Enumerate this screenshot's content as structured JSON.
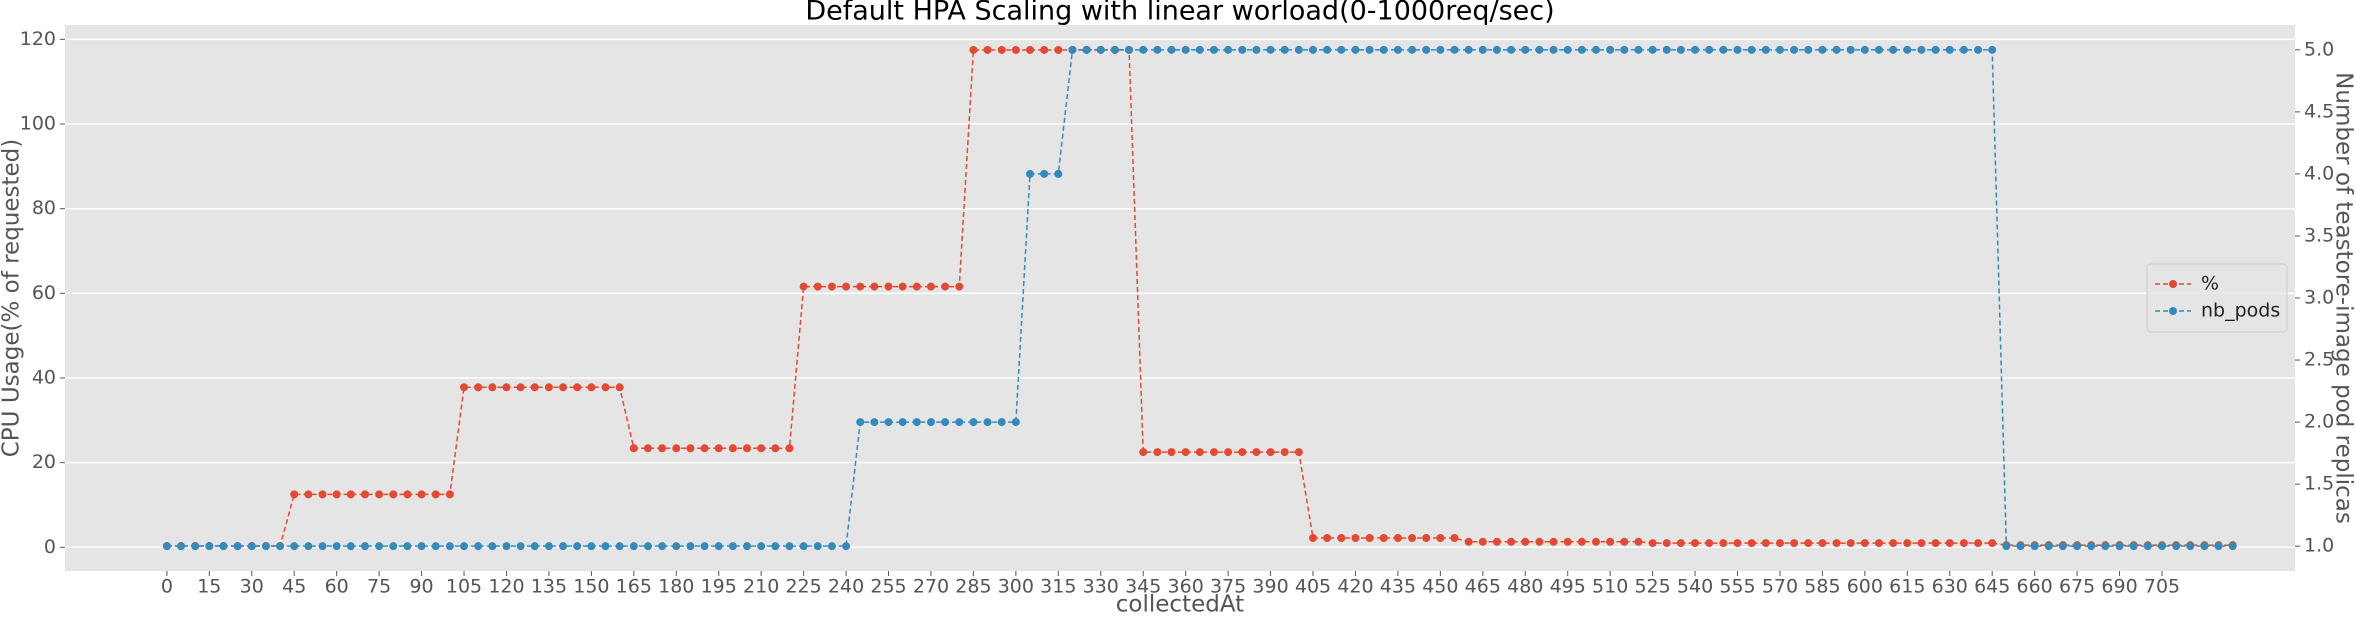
{
  "chart_data": {
    "type": "line",
    "title": "Default HPA Scaling with linear worload(0-1000req/sec)",
    "xlabel": "collectedAt",
    "ylabel": "CPU Usage(% of requested)",
    "y2label": "Number of teastore-image pod replicas",
    "x": [
      0,
      5,
      10,
      15,
      20,
      25,
      30,
      35,
      40,
      45,
      50,
      55,
      60,
      65,
      70,
      75,
      80,
      85,
      90,
      95,
      100,
      105,
      110,
      115,
      120,
      125,
      130,
      135,
      140,
      145,
      150,
      155,
      160,
      165,
      170,
      175,
      180,
      185,
      190,
      195,
      200,
      205,
      210,
      215,
      220,
      225,
      230,
      235,
      240,
      245,
      250,
      255,
      260,
      265,
      270,
      275,
      280,
      285,
      290,
      295,
      300,
      305,
      310,
      315,
      320,
      325,
      330,
      335,
      340,
      345,
      350,
      355,
      360,
      365,
      370,
      375,
      380,
      385,
      390,
      395,
      400,
      405,
      410,
      415,
      420,
      425,
      430,
      435,
      440,
      445,
      450,
      455,
      460,
      465,
      470,
      475,
      480,
      485,
      490,
      495,
      500,
      505,
      510,
      515,
      520,
      525,
      530,
      535,
      540,
      545,
      550,
      555,
      560,
      565,
      570,
      575,
      580,
      585,
      590,
      595,
      600,
      605,
      610,
      615,
      620,
      625,
      630,
      635,
      640,
      645,
      650,
      655,
      660,
      665,
      670,
      675,
      680,
      685,
      690,
      695,
      700,
      705,
      710,
      715,
      720,
      725,
      730
    ],
    "series": [
      {
        "name": "%",
        "color": "#E24A33",
        "axis": "y",
        "values": [
          0.3,
          0.3,
          0.3,
          0.3,
          0.3,
          0.3,
          0.3,
          0.3,
          0.3,
          12.5,
          12.5,
          12.5,
          12.5,
          12.5,
          12.5,
          12.5,
          12.5,
          12.5,
          12.5,
          12.5,
          12.5,
          37.8,
          37.8,
          37.8,
          37.8,
          37.8,
          37.8,
          37.8,
          37.8,
          37.8,
          37.8,
          37.8,
          37.8,
          23.4,
          23.4,
          23.4,
          23.4,
          23.4,
          23.4,
          23.4,
          23.4,
          23.4,
          23.4,
          23.4,
          23.4,
          61.6,
          61.6,
          61.6,
          61.6,
          61.6,
          61.6,
          61.6,
          61.6,
          61.6,
          61.6,
          61.6,
          61.6,
          117.5,
          117.5,
          117.5,
          117.5,
          117.5,
          117.5,
          117.5,
          117.5,
          117.5,
          117.5,
          117.5,
          117.5,
          22.5,
          22.5,
          22.5,
          22.5,
          22.5,
          22.5,
          22.5,
          22.5,
          22.5,
          22.5,
          22.5,
          22.5,
          2.2,
          2.2,
          2.2,
          2.2,
          2.2,
          2.2,
          2.2,
          2.2,
          2.2,
          2.2,
          2.2,
          1.3,
          1.3,
          1.3,
          1.3,
          1.3,
          1.3,
          1.3,
          1.3,
          1.3,
          1.3,
          1.3,
          1.3,
          1.3,
          1,
          1,
          1,
          1,
          1,
          1,
          1,
          1,
          1,
          1,
          1,
          1,
          1,
          1,
          1,
          1,
          1,
          1,
          1,
          1,
          1,
          1,
          1,
          1,
          1,
          0.5,
          0.5,
          0.5,
          0.5,
          0.5,
          0.5,
          0.5,
          0.5,
          0.5,
          0.5,
          0.5,
          0.5,
          0.5,
          0.5,
          0.5,
          0.5,
          0.5
        ]
      },
      {
        "name": "nb_pods",
        "color": "#348ABD",
        "axis": "y2",
        "values": [
          1,
          1,
          1,
          1,
          1,
          1,
          1,
          1,
          1,
          1,
          1,
          1,
          1,
          1,
          1,
          1,
          1,
          1,
          1,
          1,
          1,
          1,
          1,
          1,
          1,
          1,
          1,
          1,
          1,
          1,
          1,
          1,
          1,
          1,
          1,
          1,
          1,
          1,
          1,
          1,
          1,
          1,
          1,
          1,
          1,
          1,
          1,
          1,
          1,
          2,
          2,
          2,
          2,
          2,
          2,
          2,
          2,
          2,
          2,
          2,
          2,
          4,
          4,
          4,
          5,
          5,
          5,
          5,
          5,
          5,
          5,
          5,
          5,
          5,
          5,
          5,
          5,
          5,
          5,
          5,
          5,
          5,
          5,
          5,
          5,
          5,
          5,
          5,
          5,
          5,
          5,
          5,
          5,
          5,
          5,
          5,
          5,
          5,
          5,
          5,
          5,
          5,
          5,
          5,
          5,
          5,
          5,
          5,
          5,
          5,
          5,
          5,
          5,
          5,
          5,
          5,
          5,
          5,
          5,
          5,
          5,
          5,
          5,
          5,
          5,
          5,
          5,
          5,
          5,
          5,
          1,
          1,
          1,
          1,
          1,
          1,
          1,
          1,
          1,
          1,
          1,
          1,
          1,
          1,
          1,
          1,
          1
        ]
      }
    ],
    "xlim": [
      -36,
      752
    ],
    "xticks": [
      0,
      15,
      30,
      45,
      60,
      75,
      90,
      105,
      120,
      135,
      150,
      165,
      180,
      195,
      210,
      225,
      240,
      255,
      270,
      285,
      300,
      315,
      330,
      345,
      360,
      375,
      390,
      405,
      420,
      435,
      450,
      465,
      480,
      495,
      510,
      525,
      540,
      555,
      570,
      585,
      600,
      615,
      630,
      645,
      660,
      675,
      690,
      705
    ],
    "ylim": [
      -5.6,
      123.4
    ],
    "yticks": [
      0,
      20,
      40,
      60,
      80,
      100,
      120
    ],
    "y2lim": [
      0.8,
      5.2
    ],
    "y2ticks": [
      {
        "value": 1,
        "label": "1.0"
      },
      1.5,
      {
        "value": 2,
        "label": "2.0"
      },
      2.5,
      {
        "value": 3,
        "label": "3.0"
      },
      3.5,
      {
        "value": 4,
        "label": "4.0"
      },
      4.5,
      {
        "value": 5,
        "label": "5.0"
      }
    ],
    "grid": true,
    "legend": "center right"
  }
}
